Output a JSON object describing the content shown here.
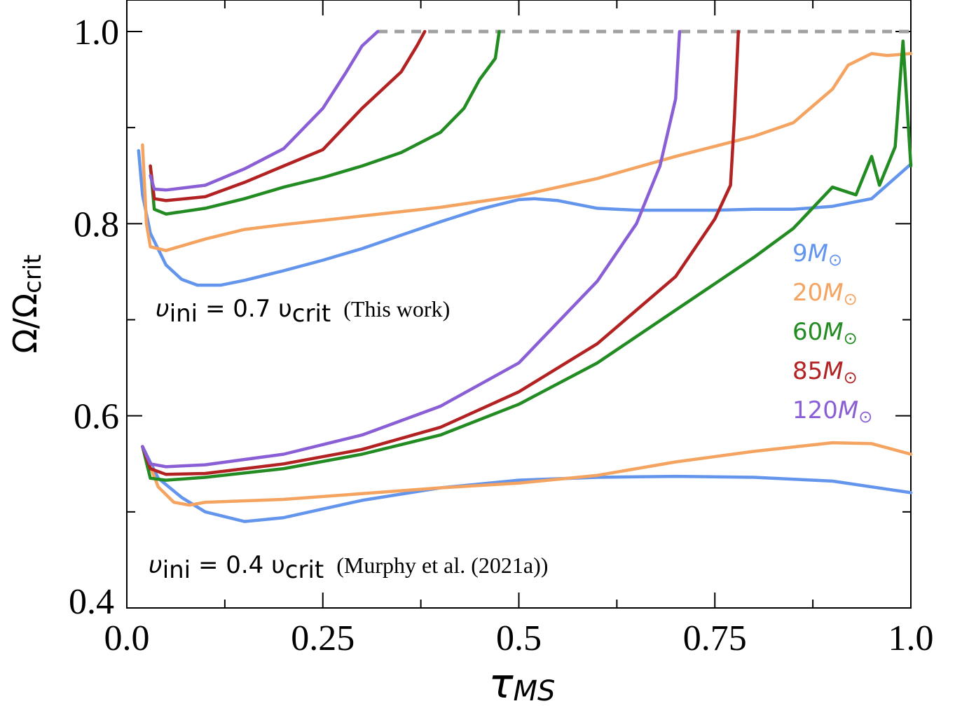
{
  "chart_data": {
    "type": "line",
    "xlabel": "τ",
    "xlabel_sub": "MS",
    "ylabel": "Ω/Ω",
    "ylabel_sub": "crit",
    "xlim": [
      0,
      1
    ],
    "ylim": [
      0.4,
      1.02
    ],
    "x_ticks": [
      {
        "value": 0.0,
        "label": "0.0"
      },
      {
        "value": 0.25,
        "label": "0.25"
      },
      {
        "value": 0.5,
        "label": "0.5"
      },
      {
        "value": 0.75,
        "label": "0.75"
      },
      {
        "value": 1.0,
        "label": "1.0"
      }
    ],
    "y_ticks": [
      {
        "value": 0.4,
        "label": "0.4"
      },
      {
        "value": 0.6,
        "label": "0.6"
      },
      {
        "value": 0.8,
        "label": "0.8"
      },
      {
        "value": 1.0,
        "label": "1.0"
      }
    ],
    "critical_line": {
      "y": 1.0,
      "color": "#a0a0a0"
    },
    "grid": false,
    "legend_position": "right",
    "annotations": {
      "this_work": {
        "math_prefix": "υ",
        "math_sub1": "ini",
        "math_middle": " = 0.7 υ",
        "math_sub2": "crit",
        "note": "(This work)"
      },
      "murphy": {
        "math_prefix": "υ",
        "math_sub1": "ini",
        "math_middle": " = 0.4 υ",
        "math_sub2": "crit",
        "note": "(Murphy et al. (2021a))"
      }
    },
    "series": [
      {
        "name": "9M⊙",
        "group": "v0.7",
        "color": "#6495ed",
        "points": [
          [
            0.015,
            0.876
          ],
          [
            0.02,
            0.83
          ],
          [
            0.03,
            0.79
          ],
          [
            0.05,
            0.757
          ],
          [
            0.07,
            0.742
          ],
          [
            0.09,
            0.736
          ],
          [
            0.12,
            0.736
          ],
          [
            0.15,
            0.741
          ],
          [
            0.2,
            0.751
          ],
          [
            0.25,
            0.762
          ],
          [
            0.3,
            0.774
          ],
          [
            0.35,
            0.788
          ],
          [
            0.4,
            0.802
          ],
          [
            0.45,
            0.815
          ],
          [
            0.5,
            0.825
          ],
          [
            0.52,
            0.826
          ],
          [
            0.55,
            0.824
          ],
          [
            0.6,
            0.816
          ],
          [
            0.65,
            0.814
          ],
          [
            0.7,
            0.814
          ],
          [
            0.75,
            0.814
          ],
          [
            0.8,
            0.815
          ],
          [
            0.85,
            0.815
          ],
          [
            0.9,
            0.818
          ],
          [
            0.95,
            0.826
          ],
          [
            1.0,
            0.862
          ]
        ]
      },
      {
        "name": "20M⊙",
        "group": "v0.7",
        "color": "#f4a460",
        "points": [
          [
            0.02,
            0.882
          ],
          [
            0.025,
            0.8
          ],
          [
            0.03,
            0.776
          ],
          [
            0.05,
            0.772
          ],
          [
            0.1,
            0.784
          ],
          [
            0.15,
            0.794
          ],
          [
            0.2,
            0.799
          ],
          [
            0.3,
            0.808
          ],
          [
            0.4,
            0.817
          ],
          [
            0.5,
            0.829
          ],
          [
            0.6,
            0.847
          ],
          [
            0.7,
            0.87
          ],
          [
            0.8,
            0.891
          ],
          [
            0.85,
            0.905
          ],
          [
            0.9,
            0.94
          ],
          [
            0.92,
            0.965
          ],
          [
            0.95,
            0.977
          ],
          [
            0.97,
            0.975
          ],
          [
            1.0,
            0.977
          ]
        ]
      },
      {
        "name": "60M⊙",
        "group": "v0.7",
        "color": "#228b22",
        "points": [
          [
            0.03,
            0.86
          ],
          [
            0.035,
            0.815
          ],
          [
            0.05,
            0.81
          ],
          [
            0.1,
            0.816
          ],
          [
            0.15,
            0.826
          ],
          [
            0.2,
            0.838
          ],
          [
            0.25,
            0.848
          ],
          [
            0.3,
            0.86
          ],
          [
            0.35,
            0.874
          ],
          [
            0.4,
            0.895
          ],
          [
            0.43,
            0.92
          ],
          [
            0.45,
            0.95
          ],
          [
            0.47,
            0.972
          ],
          [
            0.475,
            1.0
          ]
        ]
      },
      {
        "name": "85M⊙",
        "group": "v0.7",
        "color": "#b22222",
        "points": [
          [
            0.03,
            0.86
          ],
          [
            0.035,
            0.826
          ],
          [
            0.05,
            0.824
          ],
          [
            0.1,
            0.828
          ],
          [
            0.15,
            0.843
          ],
          [
            0.2,
            0.86
          ],
          [
            0.25,
            0.877
          ],
          [
            0.3,
            0.92
          ],
          [
            0.35,
            0.958
          ],
          [
            0.37,
            0.985
          ],
          [
            0.38,
            1.0
          ]
        ]
      },
      {
        "name": "120M⊙",
        "group": "v0.7",
        "color": "#8a5fd6",
        "points": [
          [
            0.03,
            0.85
          ],
          [
            0.035,
            0.836
          ],
          [
            0.05,
            0.835
          ],
          [
            0.1,
            0.84
          ],
          [
            0.15,
            0.857
          ],
          [
            0.2,
            0.878
          ],
          [
            0.25,
            0.92
          ],
          [
            0.28,
            0.958
          ],
          [
            0.3,
            0.985
          ],
          [
            0.32,
            1.0
          ]
        ]
      },
      {
        "name": "9M⊙",
        "group": "v0.4",
        "color": "#6495ed",
        "points": [
          [
            0.02,
            0.568
          ],
          [
            0.04,
            0.535
          ],
          [
            0.07,
            0.515
          ],
          [
            0.1,
            0.5
          ],
          [
            0.15,
            0.49
          ],
          [
            0.2,
            0.494
          ],
          [
            0.25,
            0.503
          ],
          [
            0.3,
            0.512
          ],
          [
            0.4,
            0.525
          ],
          [
            0.5,
            0.533
          ],
          [
            0.6,
            0.536
          ],
          [
            0.7,
            0.537
          ],
          [
            0.8,
            0.536
          ],
          [
            0.9,
            0.532
          ],
          [
            1.0,
            0.52
          ]
        ]
      },
      {
        "name": "20M⊙",
        "group": "v0.4",
        "color": "#f4a460",
        "points": [
          [
            0.02,
            0.568
          ],
          [
            0.04,
            0.526
          ],
          [
            0.06,
            0.51
          ],
          [
            0.08,
            0.507
          ],
          [
            0.1,
            0.51
          ],
          [
            0.2,
            0.513
          ],
          [
            0.3,
            0.519
          ],
          [
            0.4,
            0.525
          ],
          [
            0.5,
            0.53
          ],
          [
            0.6,
            0.538
          ],
          [
            0.7,
            0.552
          ],
          [
            0.8,
            0.563
          ],
          [
            0.9,
            0.572
          ],
          [
            0.95,
            0.571
          ],
          [
            1.0,
            0.56
          ]
        ]
      },
      {
        "name": "60M⊙",
        "group": "v0.4",
        "color": "#228b22",
        "points": [
          [
            0.02,
            0.568
          ],
          [
            0.03,
            0.535
          ],
          [
            0.05,
            0.533
          ],
          [
            0.1,
            0.536
          ],
          [
            0.2,
            0.545
          ],
          [
            0.3,
            0.56
          ],
          [
            0.4,
            0.58
          ],
          [
            0.5,
            0.612
          ],
          [
            0.6,
            0.655
          ],
          [
            0.7,
            0.71
          ],
          [
            0.8,
            0.765
          ],
          [
            0.85,
            0.795
          ],
          [
            0.9,
            0.838
          ],
          [
            0.93,
            0.83
          ],
          [
            0.95,
            0.87
          ],
          [
            0.96,
            0.84
          ],
          [
            0.98,
            0.88
          ],
          [
            0.99,
            0.99
          ],
          [
            1.0,
            0.86
          ]
        ]
      },
      {
        "name": "85M⊙",
        "group": "v0.4",
        "color": "#b22222",
        "points": [
          [
            0.02,
            0.568
          ],
          [
            0.03,
            0.545
          ],
          [
            0.05,
            0.539
          ],
          [
            0.1,
            0.54
          ],
          [
            0.2,
            0.55
          ],
          [
            0.3,
            0.565
          ],
          [
            0.4,
            0.588
          ],
          [
            0.5,
            0.625
          ],
          [
            0.6,
            0.675
          ],
          [
            0.7,
            0.745
          ],
          [
            0.75,
            0.805
          ],
          [
            0.77,
            0.84
          ],
          [
            0.775,
            0.91
          ],
          [
            0.78,
            1.0
          ]
        ]
      },
      {
        "name": "120M⊙",
        "group": "v0.4",
        "color": "#8a5fd6",
        "points": [
          [
            0.02,
            0.568
          ],
          [
            0.03,
            0.55
          ],
          [
            0.05,
            0.547
          ],
          [
            0.1,
            0.549
          ],
          [
            0.2,
            0.56
          ],
          [
            0.3,
            0.58
          ],
          [
            0.4,
            0.61
          ],
          [
            0.5,
            0.655
          ],
          [
            0.6,
            0.74
          ],
          [
            0.65,
            0.8
          ],
          [
            0.68,
            0.86
          ],
          [
            0.7,
            0.93
          ],
          [
            0.705,
            1.0
          ]
        ]
      }
    ],
    "legend": [
      {
        "label_num": "9",
        "label_math": "M",
        "label_sub": "⊙",
        "color": "#6495ed"
      },
      {
        "label_num": "20",
        "label_math": "M",
        "label_sub": "⊙",
        "color": "#f4a460"
      },
      {
        "label_num": "60",
        "label_math": "M",
        "label_sub": "⊙",
        "color": "#228b22"
      },
      {
        "label_num": "85",
        "label_math": "M",
        "label_sub": "⊙",
        "color": "#b22222"
      },
      {
        "label_num": "120",
        "label_math": "M",
        "label_sub": "⊙",
        "color": "#8a5fd6"
      }
    ]
  }
}
